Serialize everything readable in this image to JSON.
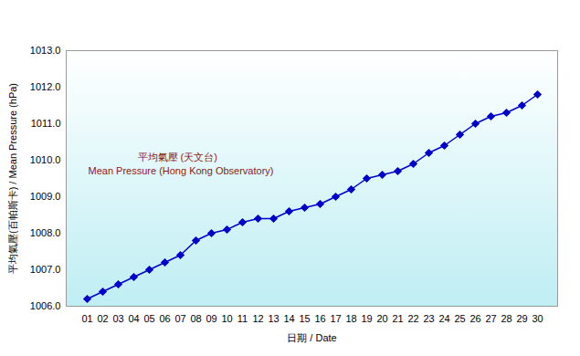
{
  "chart_data": {
    "type": "line",
    "xlabel": "日期 / Date",
    "ylabel": "平均氣壓(百帕斯卡) / Mean Pressure (hPa)",
    "annotations": [
      "平均氣壓 (天文台)",
      "Mean Pressure (Hong Kong Observatory)"
    ],
    "categories": [
      "01",
      "02",
      "03",
      "04",
      "05",
      "06",
      "07",
      "08",
      "09",
      "10",
      "11",
      "12",
      "13",
      "14",
      "15",
      "16",
      "17",
      "18",
      "19",
      "20",
      "21",
      "22",
      "23",
      "24",
      "25",
      "26",
      "27",
      "28",
      "29",
      "30"
    ],
    "values": [
      1006.2,
      1006.4,
      1006.6,
      1006.8,
      1007.0,
      1007.2,
      1007.4,
      1007.8,
      1008.0,
      1008.1,
      1008.3,
      1008.4,
      1008.4,
      1008.6,
      1008.7,
      1008.8,
      1009.0,
      1009.2,
      1009.5,
      1009.6,
      1009.7,
      1009.9,
      1010.2,
      1010.4,
      1010.7,
      1011.0,
      1011.2,
      1011.3,
      1011.5,
      1011.8
    ],
    "color": "#0000cc",
    "marker": "diamond",
    "ylim": [
      1006,
      1013
    ],
    "yticks": [
      {
        "value": 1006,
        "label": "1006.0"
      },
      {
        "value": 1007,
        "label": "1007.0"
      },
      {
        "value": 1008,
        "label": "1008.0"
      },
      {
        "value": 1009,
        "label": "1009.0"
      },
      {
        "value": 1010,
        "label": "1010.0"
      },
      {
        "value": 1011,
        "label": "1011.0"
      },
      {
        "value": 1012,
        "label": "1012.0"
      },
      {
        "value": 1013,
        "label": "1013.0"
      }
    ],
    "grid": false
  }
}
